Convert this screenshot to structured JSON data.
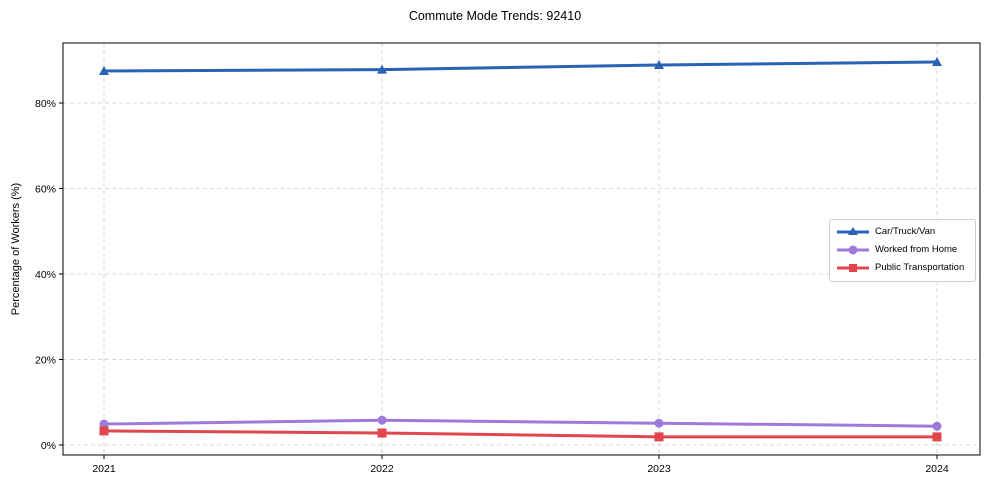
{
  "chart_data": {
    "type": "line",
    "title": "Commute Mode Trends: 92410",
    "xlabel": "",
    "ylabel": "Percentage of Workers (%)",
    "x": [
      "2021",
      "2022",
      "2023",
      "2024"
    ],
    "ylim": [
      -2,
      94
    ],
    "yticks": [
      "0%",
      "20%",
      "40%",
      "60%",
      "80%"
    ],
    "grid": true,
    "legend_position": "center right",
    "series": [
      {
        "name": "Car/Truck/Van",
        "color": "#2a62b8",
        "marker": "triangle",
        "values": [
          87.5,
          87.8,
          88.9,
          89.6
        ]
      },
      {
        "name": "Worked from Home",
        "color": "#9f79dc",
        "marker": "circle",
        "values": [
          4.9,
          5.8,
          5.1,
          4.4
        ]
      },
      {
        "name": "Public Transportation",
        "color": "#e0474c",
        "marker": "square",
        "values": [
          3.3,
          2.8,
          1.9,
          1.9
        ]
      }
    ]
  }
}
